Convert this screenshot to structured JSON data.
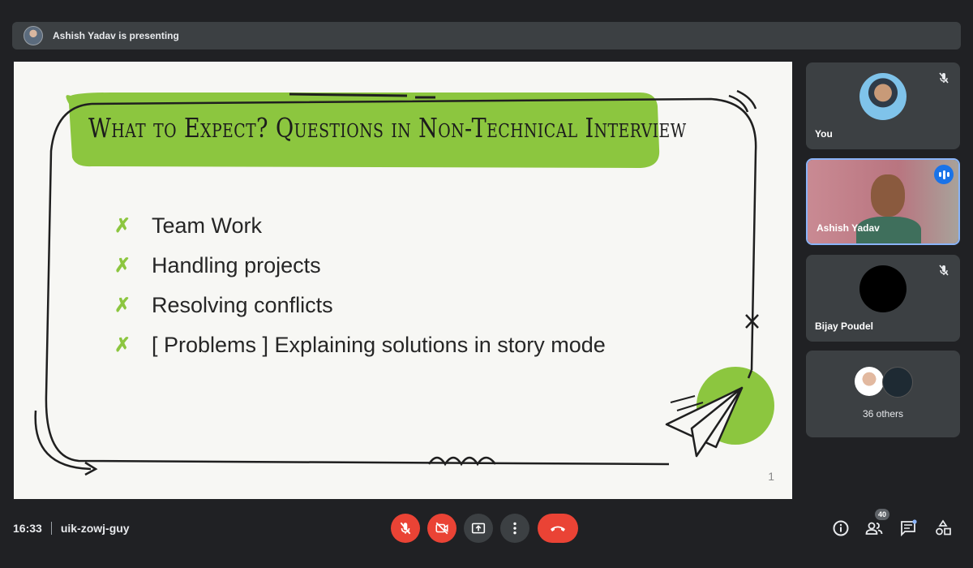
{
  "presenting_banner": {
    "text": "Ashish Yadav is presenting"
  },
  "slide": {
    "title": "What to Expect? Questions in Non-Technical Interview",
    "bullet_mark": "✗",
    "bullets": [
      "Team Work",
      "Handling projects",
      "Resolving conflicts",
      "[ Problems ] Explaining solutions in story mode"
    ],
    "page_number": "1",
    "accent_color": "#8cc63f"
  },
  "participants": [
    {
      "name": "You",
      "muted": true
    },
    {
      "name": "Ashish Yadav",
      "speaking": true
    },
    {
      "name": "Bijay Poudel",
      "muted": true
    }
  ],
  "others": {
    "label": "36 others"
  },
  "meeting": {
    "time": "16:33",
    "code": "uik-zowj-guy"
  },
  "controls": [
    {
      "name": "microphone-off",
      "color": "#ea4335"
    },
    {
      "name": "camera-off",
      "color": "#ea4335"
    },
    {
      "name": "present-screen",
      "color": "#3c4043"
    },
    {
      "name": "more-options",
      "color": "#3c4043"
    },
    {
      "name": "leave-call",
      "color": "#ea4335"
    }
  ],
  "right_icons": {
    "people_count": "40",
    "icons": [
      "info-icon",
      "people-icon",
      "chat-icon",
      "activities-icon"
    ]
  }
}
